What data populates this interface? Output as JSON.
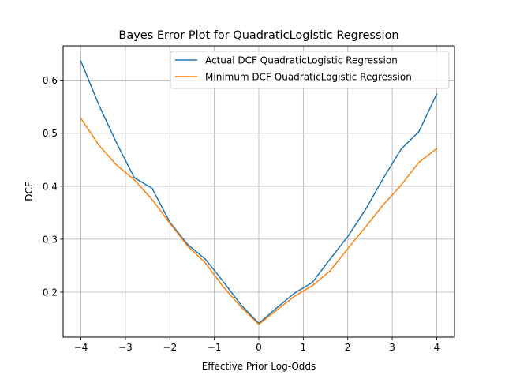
{
  "chart_data": {
    "type": "line",
    "title": "Bayes Error Plot for QuadraticLogistic Regression",
    "xlabel": "Effective Prior Log-Odds",
    "ylabel": "DCF",
    "xlim": [
      -4.4,
      4.4
    ],
    "ylim": [
      0.115,
      0.665
    ],
    "grid": true,
    "legend_position": "top-right",
    "xticks": [
      -4,
      -3,
      -2,
      -1,
      0,
      1,
      2,
      3,
      4
    ],
    "xtick_labels": [
      "−4",
      "−3",
      "−2",
      "−1",
      "0",
      "1",
      "2",
      "3",
      "4"
    ],
    "yticks": [
      0.2,
      0.3,
      0.4,
      0.5,
      0.6
    ],
    "ytick_labels": [
      "0.2",
      "0.3",
      "0.4",
      "0.5",
      "0.6"
    ],
    "x": [
      -4.0,
      -3.6,
      -3.2,
      -2.8,
      -2.4,
      -2.0,
      -1.6,
      -1.2,
      -0.8,
      -0.4,
      0.0,
      0.4,
      0.8,
      1.2,
      1.6,
      2.0,
      2.4,
      2.8,
      3.2,
      3.6,
      4.0
    ],
    "series": [
      {
        "name": "Actual DCF QuadraticLogistic Regression",
        "color": "#1f77b4",
        "values": [
          0.636,
          0.554,
          0.482,
          0.416,
          0.396,
          0.332,
          0.29,
          0.262,
          0.22,
          0.176,
          0.141,
          0.17,
          0.198,
          0.218,
          0.262,
          0.305,
          0.356,
          0.415,
          0.47,
          0.503,
          0.574
        ]
      },
      {
        "name": "Minimum DCF QuadraticLogistic Regression",
        "color": "#ff7f0e",
        "values": [
          0.528,
          0.478,
          0.44,
          0.412,
          0.375,
          0.33,
          0.287,
          0.255,
          0.21,
          0.172,
          0.139,
          0.166,
          0.192,
          0.212,
          0.24,
          0.282,
          0.323,
          0.365,
          0.402,
          0.445,
          0.471
        ]
      }
    ]
  }
}
